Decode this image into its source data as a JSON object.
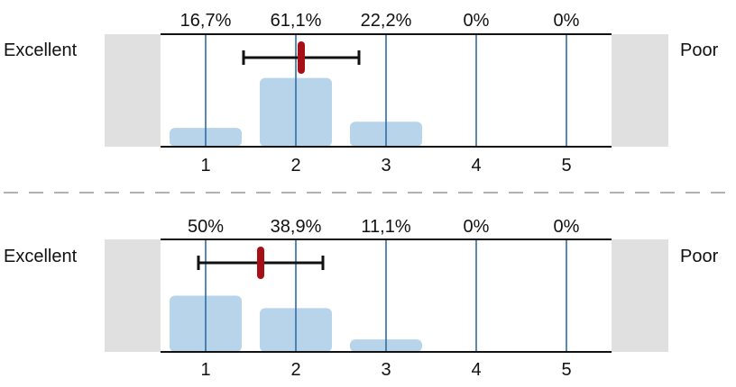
{
  "chart_data": [
    {
      "type": "bar",
      "categories": [
        "1",
        "2",
        "3",
        "4",
        "5"
      ],
      "values": [
        16.7,
        61.1,
        22.2,
        0,
        0
      ],
      "value_labels": [
        "16,7%",
        "61,1%",
        "22,2%",
        "0%",
        "0%"
      ],
      "left_label": "Excellent",
      "right_label": "Poor",
      "mean": 2.06,
      "error_low": 1.42,
      "error_high": 2.7,
      "ylim": [
        0,
        100
      ],
      "grid": true
    },
    {
      "type": "bar",
      "categories": [
        "1",
        "2",
        "3",
        "4",
        "5"
      ],
      "values": [
        50,
        38.9,
        11.1,
        0,
        0
      ],
      "value_labels": [
        "50%",
        "38,9%",
        "11,1%",
        "0%",
        "0%"
      ],
      "left_label": "Excellent",
      "right_label": "Poor",
      "mean": 1.61,
      "error_low": 0.92,
      "error_high": 2.3,
      "ylim": [
        0,
        100
      ],
      "grid": true
    }
  ],
  "colors": {
    "bar": "#b7d4ea",
    "gridline": "#2e6da4",
    "side_box": "#e0e0e0",
    "mean_marker": "#a50f15",
    "error_bar": "#111111",
    "divider": "#999999"
  }
}
